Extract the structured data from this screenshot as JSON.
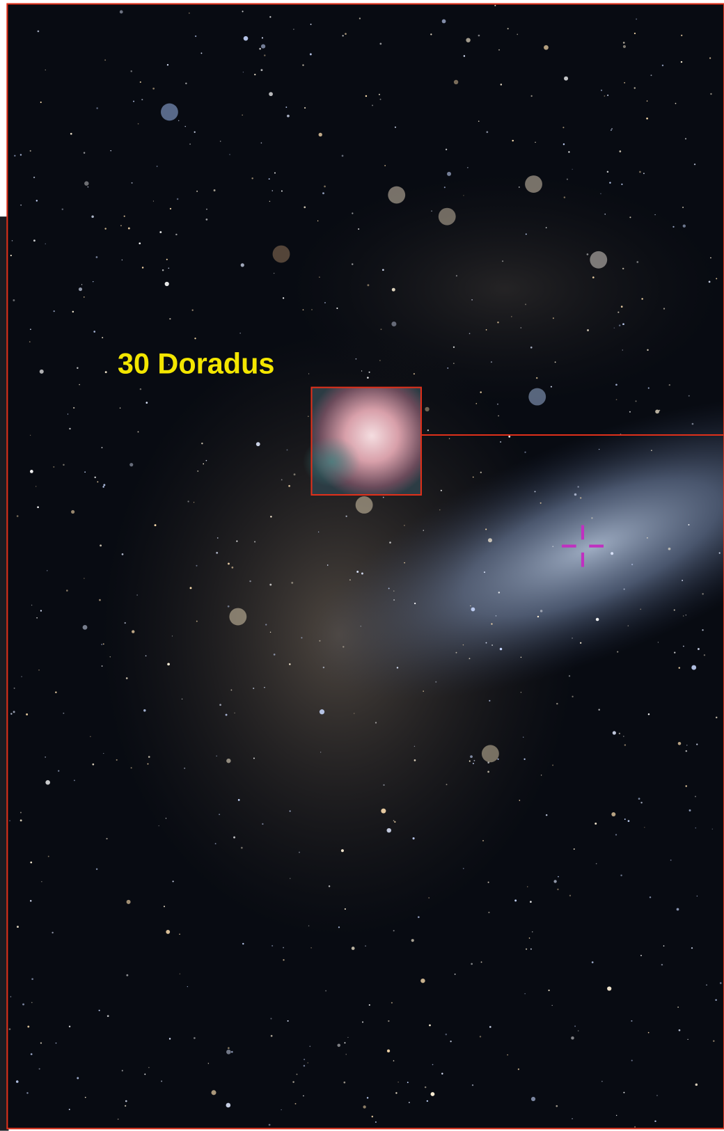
{
  "label": "30 Doradus"
}
